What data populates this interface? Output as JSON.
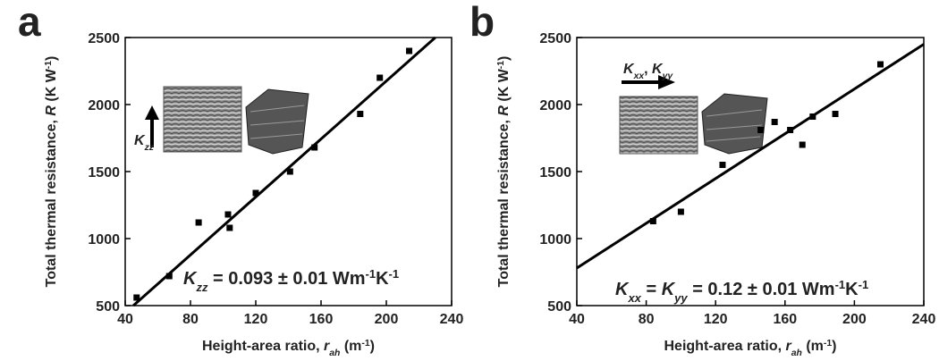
{
  "chart_data": [
    {
      "type": "scatter",
      "panel_label": "a",
      "color": "#000000",
      "x": [
        47,
        67,
        85,
        103,
        104,
        120,
        141,
        156,
        184,
        196,
        214
      ],
      "values": [
        560,
        720,
        1120,
        1180,
        1080,
        1340,
        1500,
        1680,
        1930,
        2200,
        2400
      ],
      "fit": {
        "x": [
          45,
          230
        ],
        "y": [
          500,
          2500
        ]
      },
      "xlim": [
        40,
        240
      ],
      "xticks": [
        40,
        80,
        120,
        160,
        200,
        240
      ],
      "ylim": [
        500,
        2500
      ],
      "yticks": [
        500,
        1000,
        1500,
        2000,
        2500
      ],
      "x_label": [
        {
          "text": "Height-area ratio, ",
          "style": "normal"
        },
        {
          "text": "r",
          "style": "italic"
        },
        {
          "text": "ah",
          "style": "sub"
        },
        {
          "text": " (m",
          "style": "normal"
        },
        {
          "text": "-1",
          "style": "sup"
        },
        {
          "text": ")",
          "style": "normal"
        }
      ],
      "y_label": [
        {
          "text": "Total thermal resistance, ",
          "style": "normal"
        },
        {
          "text": "R",
          "style": "italic"
        },
        {
          "text": " (K W",
          "style": "normal"
        },
        {
          "text": "-1",
          "style": "sup"
        },
        {
          "text": ")",
          "style": "normal"
        }
      ],
      "equation": [
        {
          "text": "K",
          "style": "italic"
        },
        {
          "text": "zz",
          "style": "sub"
        },
        {
          "text": " = 0.093 ± 0.01 Wm",
          "style": "normal"
        },
        {
          "text": "-1",
          "style": "sup"
        },
        {
          "text": "K",
          "style": "normal"
        },
        {
          "text": "-1",
          "style": "sup"
        }
      ],
      "inset_label": [
        {
          "text": "K",
          "style": "italic"
        },
        {
          "text": "zz",
          "style": "sub"
        }
      ]
    },
    {
      "type": "scatter",
      "panel_label": "b",
      "color": "#000000",
      "x": [
        84,
        100,
        124,
        146,
        154,
        163,
        170,
        176,
        189,
        215
      ],
      "values": [
        1130,
        1200,
        1550,
        1810,
        1870,
        1810,
        1700,
        1910,
        1930,
        2300
      ],
      "fit": {
        "x": [
          40,
          240
        ],
        "y": [
          780,
          2450
        ]
      },
      "xlim": [
        40,
        240
      ],
      "xticks": [
        40,
        80,
        120,
        160,
        200,
        240
      ],
      "ylim": [
        500,
        2500
      ],
      "yticks": [
        500,
        1000,
        1500,
        2000,
        2500
      ],
      "x_label": [
        {
          "text": "Height-area ratio, ",
          "style": "normal"
        },
        {
          "text": "r",
          "style": "italic"
        },
        {
          "text": "ah",
          "style": "sub"
        },
        {
          "text": " (m",
          "style": "normal"
        },
        {
          "text": "-1",
          "style": "sup"
        },
        {
          "text": ")",
          "style": "normal"
        }
      ],
      "y_label": [
        {
          "text": "Total thermal resistance, ",
          "style": "normal"
        },
        {
          "text": "R",
          "style": "italic"
        },
        {
          "text": " (K W",
          "style": "normal"
        },
        {
          "text": "-1",
          "style": "sup"
        },
        {
          "text": ")",
          "style": "normal"
        }
      ],
      "equation": [
        {
          "text": "K",
          "style": "italic"
        },
        {
          "text": "xx",
          "style": "sub"
        },
        {
          "text": " = ",
          "style": "normal"
        },
        {
          "text": "K",
          "style": "italic"
        },
        {
          "text": "yy",
          "style": "sub"
        },
        {
          "text": " = 0.12 ± 0.01 Wm",
          "style": "normal"
        },
        {
          "text": "-1",
          "style": "sup"
        },
        {
          "text": "K",
          "style": "normal"
        },
        {
          "text": "-1",
          "style": "sup"
        }
      ],
      "inset_label": [
        {
          "text": "K",
          "style": "italic"
        },
        {
          "text": "xx",
          "style": "sub"
        },
        {
          "text": ", ",
          "style": "normal"
        },
        {
          "text": "K",
          "style": "italic"
        },
        {
          "text": "yy",
          "style": "sub"
        }
      ]
    }
  ]
}
